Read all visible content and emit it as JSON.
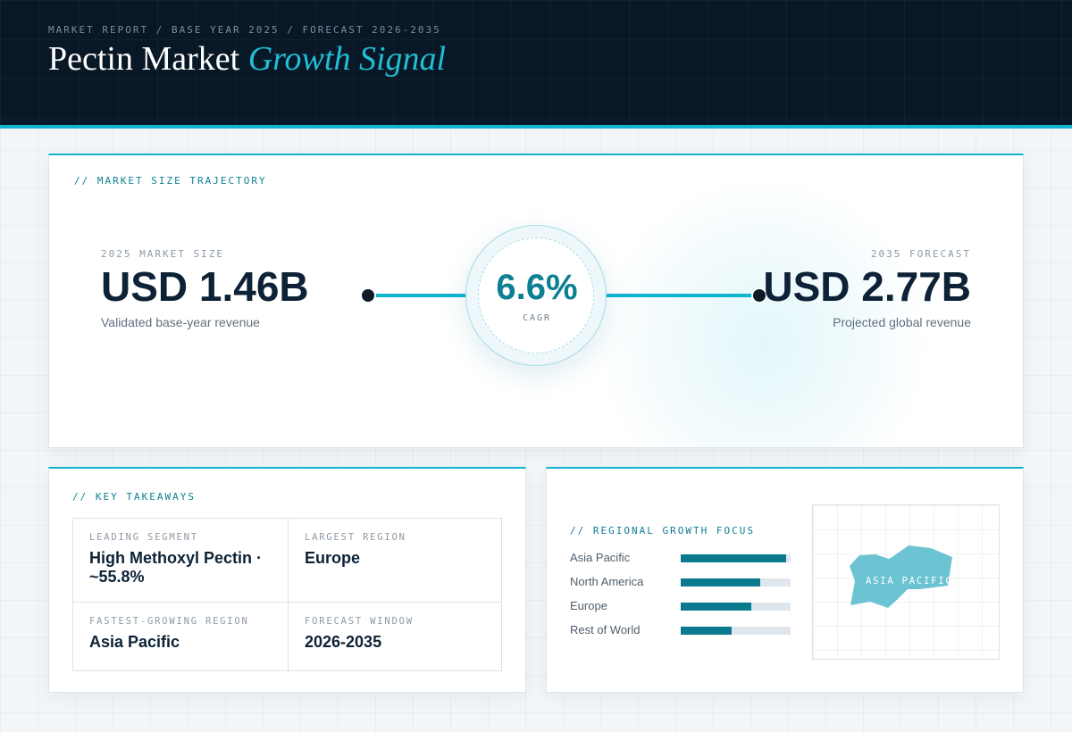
{
  "header": {
    "breadcrumb": "MARKET REPORT / BASE YEAR 2025 / FORECAST 2026-2035",
    "title_main": "Pectin Market",
    "title_accent": "Growth Signal"
  },
  "trajectory": {
    "section_label": "// MARKET SIZE TRAJECTORY",
    "start": {
      "label": "2025 MARKET SIZE",
      "value": "USD 1.46B",
      "description": "Validated base-year revenue"
    },
    "end": {
      "label": "2035 FORECAST",
      "value": "USD 2.77B",
      "description": "Projected global revenue"
    },
    "cagr": {
      "value": "6.6%",
      "label": "CAGR"
    }
  },
  "takeaways": {
    "section_label": "// KEY TAKEAWAYS",
    "items": [
      {
        "label": "LEADING SEGMENT",
        "value": "High Methoxyl Pectin · ~55.8%"
      },
      {
        "label": "LARGEST REGION",
        "value": "Europe"
      },
      {
        "label": "FASTEST-GROWING REGION",
        "value": "Asia Pacific"
      },
      {
        "label": "FORECAST WINDOW",
        "value": "2026-2035"
      }
    ]
  },
  "regional": {
    "section_label": "// REGIONAL GROWTH FOCUS",
    "bars": [
      {
        "name": "Asia Pacific",
        "fraction": 0.96
      },
      {
        "name": "North America",
        "fraction": 0.72
      },
      {
        "name": "Europe",
        "fraction": 0.64
      },
      {
        "name": "Rest of World",
        "fraction": 0.46
      }
    ],
    "map_label": "ASIA PACIFIC",
    "colors": {
      "bar_fill": "#0c7a8e",
      "bar_track": "#dfe7ed",
      "map_shape": "#6cc4d2"
    }
  },
  "colors": {
    "accent": "#0fb4cf",
    "header_bg": "#091826",
    "title_accent": "#22bdd6"
  }
}
